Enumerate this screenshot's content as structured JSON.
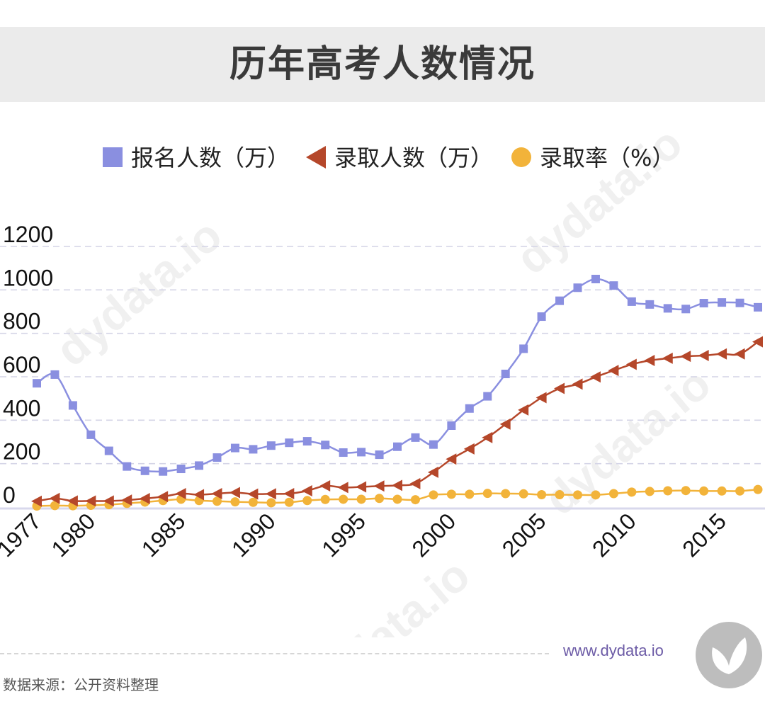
{
  "header": {
    "title": "历年高考人数情况"
  },
  "footer": {
    "website": "www.dydata.io",
    "source": "数据来源：公开资料整理"
  },
  "watermark": "dydata.io",
  "chart_data": {
    "type": "line",
    "title": "历年高考人数情况",
    "x": [
      1977,
      1978,
      1979,
      1980,
      1981,
      1982,
      1983,
      1984,
      1985,
      1986,
      1987,
      1988,
      1989,
      1990,
      1991,
      1992,
      1993,
      1994,
      1995,
      1996,
      1997,
      1998,
      1999,
      2000,
      2001,
      2002,
      2003,
      2004,
      2005,
      2006,
      2007,
      2008,
      2009,
      2010,
      2011,
      2012,
      2013,
      2014,
      2015,
      2016,
      2017
    ],
    "x_tick_labels": [
      "1977",
      "1980",
      "1985",
      "1990",
      "1995",
      "2000",
      "2005",
      "2010",
      "2015"
    ],
    "y_tick_labels": [
      "0",
      "200",
      "400",
      "600",
      "800",
      "1000",
      "1200"
    ],
    "ylim": [
      0,
      1200
    ],
    "grid": true,
    "legend_position": "top",
    "series": [
      {
        "name": "报名人数（万）",
        "color": "#8a8fe0",
        "marker": "square",
        "values": [
          570,
          610,
          468,
          333,
          259,
          187,
          167,
          164,
          176,
          191,
          228,
          272,
          266,
          283,
          296,
          303,
          286,
          251,
          253,
          241,
          278,
          320,
          288,
          375,
          454,
          510,
          613,
          729,
          877,
          950,
          1010,
          1050,
          1020,
          946,
          933,
          915,
          912,
          939,
          942,
          940,
          920
        ]
      },
      {
        "name": "录取人数（万）",
        "color": "#b5472a",
        "marker": "triangle",
        "values": [
          27,
          40,
          28,
          28,
          28,
          32,
          39,
          48,
          62,
          57,
          62,
          67,
          60,
          61,
          62,
          75,
          98,
          90,
          93,
          97,
          100,
          108,
          160,
          221,
          268,
          320,
          382,
          447,
          504,
          546,
          566,
          599,
          629,
          657,
          675,
          685,
          694,
          698,
          705,
          705,
          761
        ]
      },
      {
        "name": "录取率（%）",
        "color": "#f2b33a",
        "marker": "circle",
        "values": [
          5,
          7,
          6,
          8,
          11,
          17,
          23,
          30,
          36,
          30,
          27,
          24,
          22,
          20,
          22,
          30,
          35,
          36,
          36,
          40,
          36,
          34,
          56,
          59,
          59,
          63,
          62,
          61,
          57,
          57,
          56,
          56,
          62,
          69,
          72,
          75,
          76,
          74,
          74,
          74,
          81
        ]
      }
    ]
  }
}
